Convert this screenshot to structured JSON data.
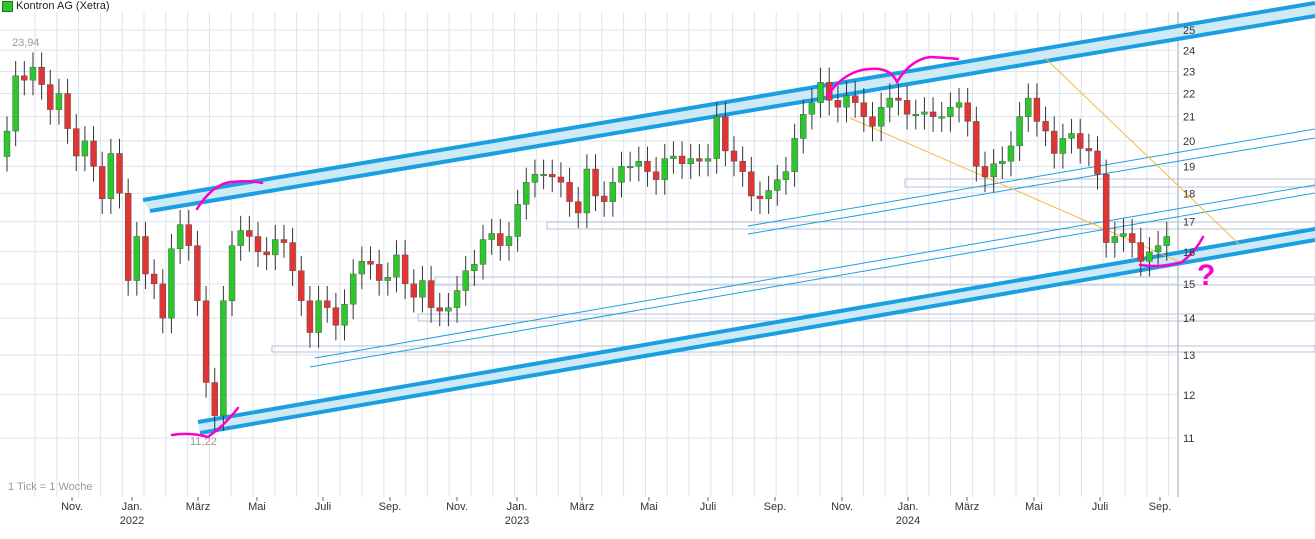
{
  "header": {
    "title": "Kontron AG (Xetra)"
  },
  "footer": {
    "tick_note": "1 Tick = 1 Woche"
  },
  "colors": {
    "up": "#2ec52e",
    "down": "#e03535",
    "grid": "#dde3ee",
    "channel": "#1a9fe0",
    "channel_fill": "#cfeaf7",
    "annotation": "#ff00cc",
    "trend_orange": "#f5b942"
  },
  "chart_data": {
    "type": "candlestick",
    "title": "Kontron AG (Xetra)",
    "period": "weekly",
    "y_scale": "log",
    "ylim": [
      10.5,
      25.5
    ],
    "y_ticks": [
      11,
      12,
      13,
      14,
      15,
      16,
      17,
      18,
      19,
      20,
      21,
      22,
      23,
      24,
      25
    ],
    "x_ticks": [
      {
        "label": "Nov.",
        "year": ""
      },
      {
        "label": "Jan.",
        "year": "2022"
      },
      {
        "label": "März",
        "year": ""
      },
      {
        "label": "Mai",
        "year": ""
      },
      {
        "label": "Juli",
        "year": ""
      },
      {
        "label": "Sep.",
        "year": ""
      },
      {
        "label": "Nov.",
        "year": ""
      },
      {
        "label": "Jan.",
        "year": "2023"
      },
      {
        "label": "März",
        "year": ""
      },
      {
        "label": "Mai",
        "year": ""
      },
      {
        "label": "Juli",
        "year": ""
      },
      {
        "label": "Sep.",
        "year": ""
      },
      {
        "label": "Nov.",
        "year": ""
      },
      {
        "label": "Jan.",
        "year": "2024"
      },
      {
        "label": "März",
        "year": ""
      },
      {
        "label": "Mai",
        "year": ""
      },
      {
        "label": "Juli",
        "year": ""
      },
      {
        "label": "Sep.",
        "year": ""
      }
    ],
    "annotations": {
      "high_label": "23,94",
      "low_label": "11,22",
      "question": "?"
    },
    "grid": true,
    "closes": [
      20.4,
      22.8,
      22.6,
      23.2,
      22.4,
      21.3,
      22.0,
      20.5,
      19.4,
      20.0,
      19.0,
      17.8,
      19.5,
      18.0,
      15.1,
      16.5,
      15.3,
      15.0,
      14.0,
      16.1,
      16.9,
      16.2,
      14.5,
      12.3,
      11.5,
      14.5,
      16.2,
      16.7,
      16.5,
      16.0,
      15.9,
      16.4,
      16.3,
      15.4,
      14.5,
      13.6,
      14.5,
      14.3,
      13.8,
      14.4,
      15.3,
      15.7,
      15.6,
      15.1,
      15.2,
      15.9,
      15.0,
      14.6,
      15.1,
      14.3,
      14.2,
      14.3,
      14.8,
      15.4,
      15.6,
      16.4,
      16.6,
      16.2,
      16.5,
      17.6,
      18.4,
      18.7,
      18.7,
      18.6,
      18.4,
      17.7,
      17.3,
      18.9,
      17.9,
      17.7,
      18.4,
      19.0,
      19.0,
      19.2,
      18.8,
      18.5,
      19.3,
      19.4,
      19.1,
      19.3,
      19.2,
      19.3,
      21.0,
      19.6,
      19.2,
      18.8,
      17.9,
      17.8,
      18.1,
      18.5,
      18.8,
      20.1,
      21.1,
      21.6,
      22.5,
      21.7,
      21.4,
      21.9,
      21.6,
      21.0,
      20.6,
      21.4,
      21.8,
      21.7,
      21.1,
      21.1,
      21.2,
      21.0,
      21.0,
      21.4,
      21.6,
      20.8,
      19.0,
      18.6,
      19.1,
      19.2,
      19.8,
      21.0,
      21.8,
      20.8,
      20.4,
      19.5,
      20.1,
      20.3,
      19.7,
      19.6,
      18.7,
      16.3,
      16.5,
      16.6,
      16.3,
      15.7,
      16.0,
      16.2,
      16.5
    ],
    "channels": [
      {
        "name": "",
        "style": "thick"
      },
      {
        "name": "",
        "style": "thin"
      }
    ]
  }
}
